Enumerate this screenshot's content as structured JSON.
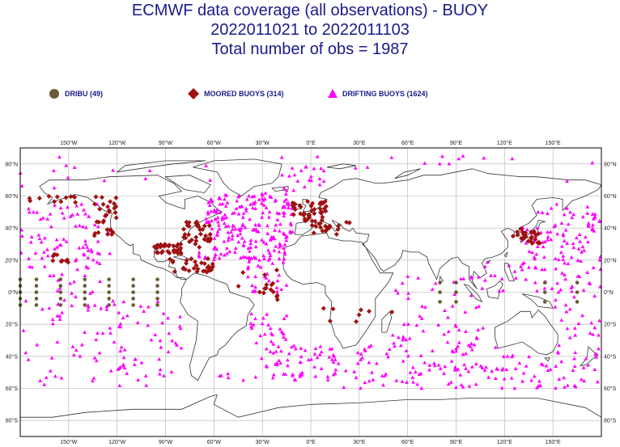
{
  "header": {
    "line1": "ECMWF data coverage (all observations) - BUOY",
    "line2": "2022011021 to 2022011103",
    "line3": "Total number of obs = 1987"
  },
  "legend": [
    {
      "label": "DRIBU (49)",
      "marker": "circle",
      "color": "#6b5a35"
    },
    {
      "label": "MOORED BUOYS (314)",
      "marker": "diamond",
      "color": "#a01010"
    },
    {
      "label": "DRIFTING BUOYS (1624)",
      "marker": "triangle",
      "color": "#ff00ff"
    }
  ],
  "map": {
    "lon_ticks": [
      "150°W",
      "120°W",
      "90°W",
      "60°W",
      "30°W",
      "0°E",
      "30°E",
      "60°E",
      "90°E",
      "120°E",
      "150°E"
    ],
    "lat_ticks": [
      "80°N",
      "60°N",
      "40°N",
      "20°N",
      "0°N",
      "20°S",
      "40°S",
      "60°S",
      "80°S"
    ],
    "grid": true,
    "colors": {
      "land_outline": "#333333",
      "grid": "#b0b0b0"
    }
  }
}
